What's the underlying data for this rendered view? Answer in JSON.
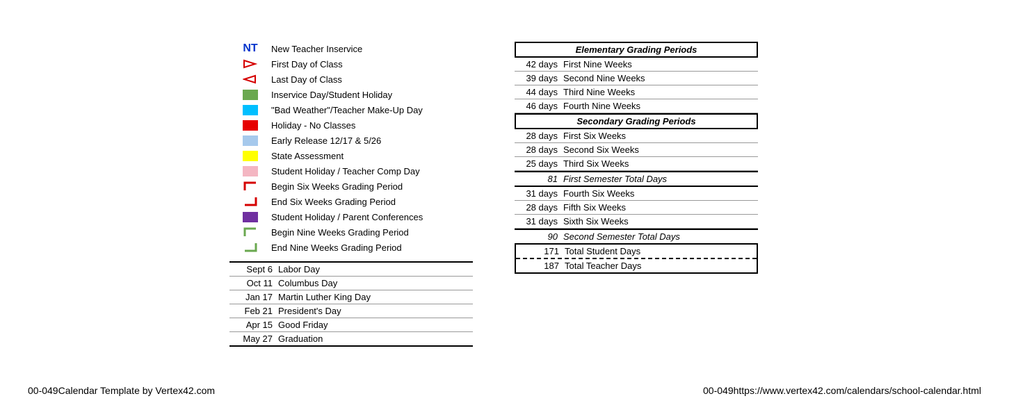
{
  "legend": {
    "nt": {
      "symbol": "NT",
      "label": "New Teacher Inservice",
      "color": "#0033cc"
    },
    "items": [
      {
        "type": "triangle-right",
        "label": "First Day of Class",
        "stroke": "#d50000"
      },
      {
        "type": "triangle-left",
        "label": "Last Day of Class",
        "stroke": "#d50000"
      },
      {
        "type": "swatch",
        "label": "Inservice Day/Student Holiday",
        "fill": "#6aa84f"
      },
      {
        "type": "swatch",
        "label": "\"Bad Weather\"/Teacher Make-Up Day",
        "fill": "#00bfff"
      },
      {
        "type": "swatch",
        "label": "Holiday - No Classes",
        "fill": "#e60000"
      },
      {
        "type": "swatch",
        "label": "Early Release 12/17 & 5/26",
        "fill": "#a6c9ec"
      },
      {
        "type": "swatch",
        "label": "State Assessment",
        "fill": "#ffff00"
      },
      {
        "type": "swatch",
        "label": "Student Holiday / Teacher Comp Day",
        "fill": "#f4b6c2"
      },
      {
        "type": "bracket-tl",
        "label": "Begin Six Weeks Grading Period",
        "stroke": "#d50000"
      },
      {
        "type": "bracket-br",
        "label": "End Six Weeks Grading Period",
        "stroke": "#d50000"
      },
      {
        "type": "swatch",
        "label": "Student Holiday / Parent Conferences",
        "fill": "#7030a0"
      },
      {
        "type": "bracket-tl",
        "label": "Begin Nine Weeks Grading Period",
        "stroke": "#6aa84f"
      },
      {
        "type": "bracket-br",
        "label": "End Nine Weeks Grading Period",
        "stroke": "#6aa84f"
      }
    ]
  },
  "dates": [
    {
      "date": "Sept 6",
      "label": "Labor Day"
    },
    {
      "date": "Oct 11",
      "label": "Columbus Day"
    },
    {
      "date": "Jan 17",
      "label": "Martin Luther King Day"
    },
    {
      "date": "Feb 21",
      "label": "President's Day"
    },
    {
      "date": "Apr 15",
      "label": "Good Friday"
    },
    {
      "date": "May 27",
      "label": "Graduation"
    }
  ],
  "grading": {
    "elem_header": "Elementary Grading Periods",
    "elem_rows": [
      {
        "days": "42 days",
        "label": "First Nine Weeks"
      },
      {
        "days": "39 days",
        "label": "Second Nine Weeks"
      },
      {
        "days": "44 days",
        "label": "Third Nine Weeks"
      },
      {
        "days": "46 days",
        "label": "Fourth Nine Weeks"
      }
    ],
    "sec_header": "Secondary Grading Periods",
    "sec_rows1": [
      {
        "days": "28 days",
        "label": "First Six Weeks"
      },
      {
        "days": "28 days",
        "label": "Second Six Weeks"
      },
      {
        "days": "25 days",
        "label": "Third Six Weeks"
      }
    ],
    "sub1": {
      "days": "81",
      "label": "First Semester Total Days"
    },
    "sec_rows2": [
      {
        "days": "31 days",
        "label": "Fourth Six Weeks"
      },
      {
        "days": "28 days",
        "label": "Fifth Six Weeks"
      },
      {
        "days": "31 days",
        "label": "Sixth Six Weeks"
      }
    ],
    "sub2": {
      "days": "90",
      "label": "Second Semester Total Days"
    },
    "totals": [
      {
        "days": "171",
        "label": "Total Student Days"
      },
      {
        "days": "187",
        "label": "Total Teacher Days"
      }
    ]
  },
  "footer": {
    "left": "00-049Calendar Template by Vertex42.com",
    "right": "00-049https://www.vertex42.com/calendars/school-calendar.html"
  }
}
